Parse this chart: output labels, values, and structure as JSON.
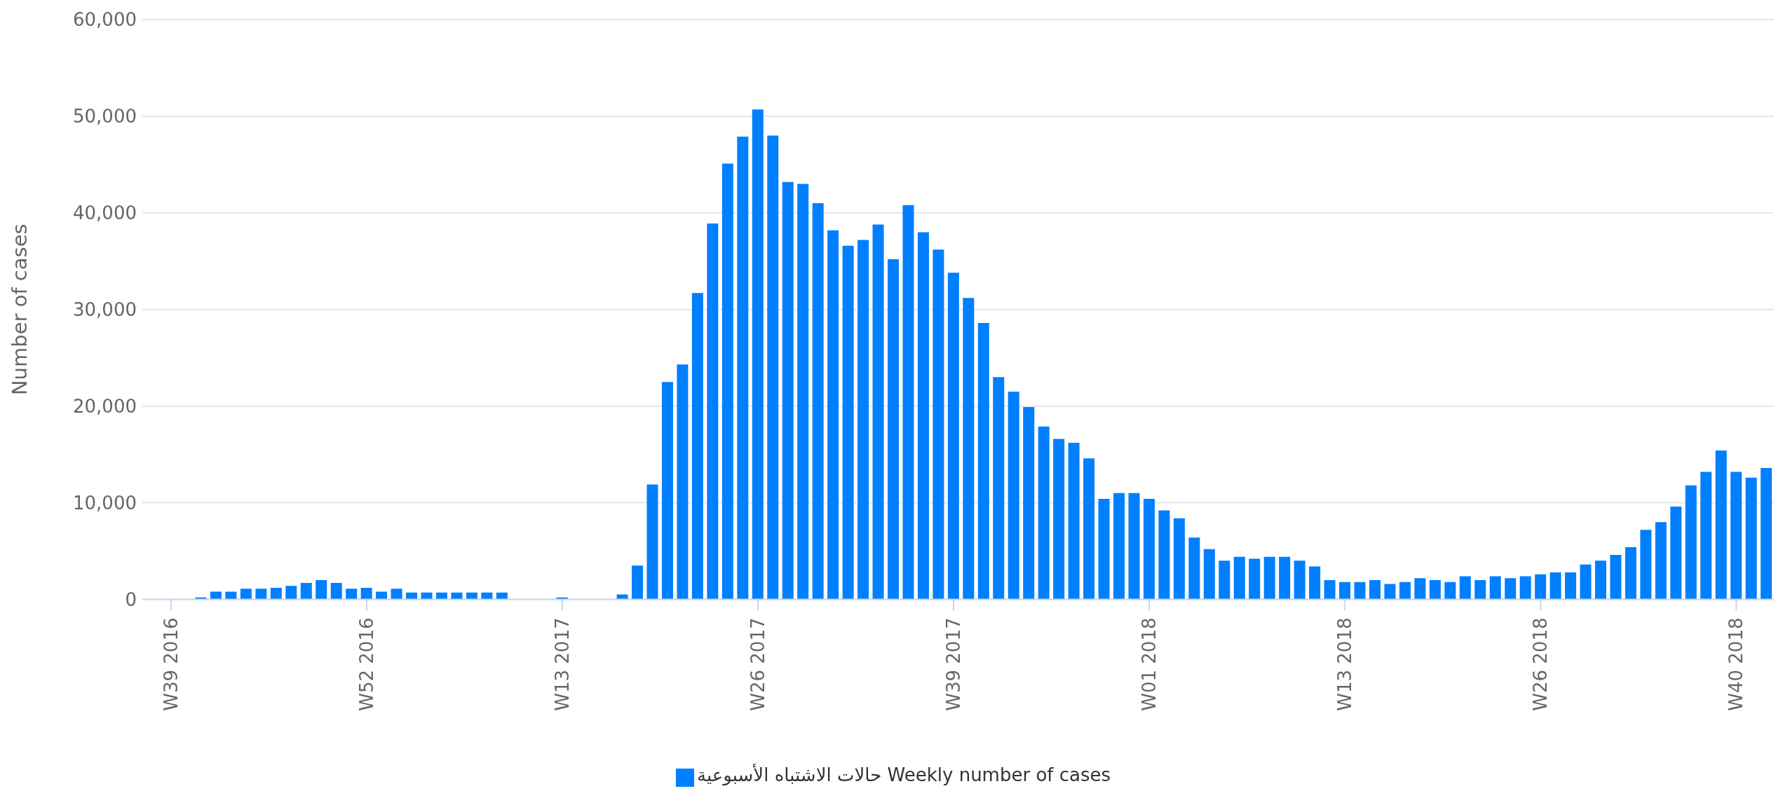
{
  "chart_data": {
    "type": "bar",
    "ylabel": "Number of cases",
    "categories": [
      "W39 2016",
      null,
      null,
      null,
      null,
      null,
      null,
      null,
      null,
      null,
      null,
      null,
      null,
      "W52 2016",
      null,
      null,
      null,
      null,
      null,
      null,
      null,
      null,
      null,
      null,
      null,
      null,
      "W13 2017",
      null,
      null,
      null,
      null,
      null,
      null,
      null,
      null,
      null,
      null,
      null,
      null,
      "W26 2017",
      null,
      null,
      null,
      null,
      null,
      null,
      null,
      null,
      null,
      null,
      null,
      null,
      "W39 2017",
      null,
      null,
      null,
      null,
      null,
      null,
      null,
      null,
      null,
      null,
      null,
      null,
      "W01 2018",
      null,
      null,
      null,
      null,
      null,
      null,
      null,
      null,
      null,
      null,
      null,
      null,
      "W13 2018",
      null,
      null,
      null,
      null,
      null,
      null,
      null,
      null,
      null,
      null,
      null,
      null,
      "W26 2018",
      null,
      null,
      null,
      null,
      null,
      null,
      null,
      null,
      null,
      null,
      null,
      null,
      "W40 2018",
      null,
      null
    ],
    "series": [
      {
        "name": "حالات الاشتباه الأسبوعية Weekly number of cases",
        "color": "#007fff",
        "values": [
          null,
          null,
          200,
          800,
          800,
          1100,
          1100,
          1200,
          1400,
          1700,
          2000,
          1700,
          1100,
          1200,
          800,
          1100,
          700,
          700,
          700,
          700,
          700,
          700,
          700,
          null,
          null,
          null,
          200,
          null,
          null,
          null,
          500,
          3500,
          11900,
          22500,
          24300,
          31700,
          38900,
          45100,
          47900,
          50700,
          48000,
          43200,
          43000,
          41000,
          38200,
          36600,
          37200,
          38800,
          35200,
          40800,
          38000,
          36200,
          33800,
          31200,
          28600,
          23000,
          21500,
          19900,
          17900,
          16600,
          16200,
          14600,
          10400,
          11000,
          11000,
          10400,
          9200,
          8400,
          6400,
          5200,
          4000,
          4400,
          4200,
          4400,
          4400,
          4000,
          3400,
          2000,
          1800,
          1800,
          2000,
          1600,
          1800,
          2200,
          2000,
          1800,
          2400,
          2000,
          2400,
          2200,
          2400,
          2600,
          2800,
          2800,
          3600,
          4000,
          4600,
          5400,
          7200,
          8000,
          9600,
          11800,
          13200,
          15400,
          13200,
          12600,
          13600
        ]
      }
    ],
    "ylim": [
      0,
      60000
    ],
    "yticks": [
      {
        "value": 0,
        "label": "0"
      },
      {
        "value": 10000,
        "label": "10,000"
      },
      {
        "value": 20000,
        "label": "20,000"
      },
      {
        "value": 30000,
        "label": "30,000"
      },
      {
        "value": 40000,
        "label": "40,000"
      },
      {
        "value": 50000,
        "label": "50,000"
      },
      {
        "value": 60000,
        "label": "60,000"
      }
    ],
    "grid": "y",
    "legend": "bottom"
  }
}
